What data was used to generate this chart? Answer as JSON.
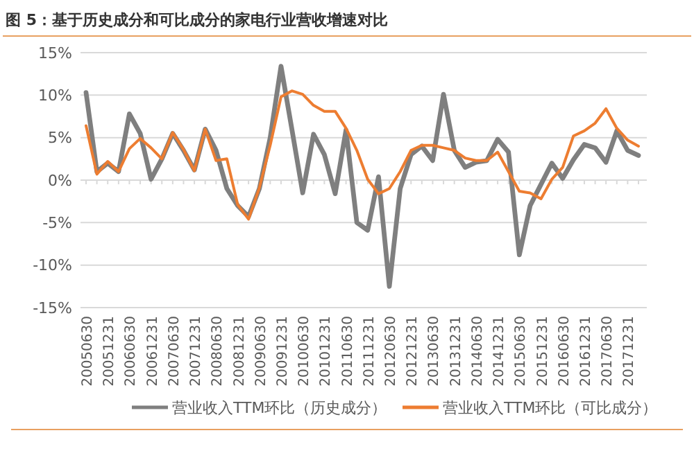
{
  "chart_data": {
    "type": "line",
    "title": "图 5：基于历史成分和可比成分的家电行业营收增速对比",
    "categories": [
      "20050630",
      null,
      "20051231",
      null,
      "20060630",
      null,
      "20061231",
      null,
      "20070630",
      null,
      "20071231",
      null,
      "20080630",
      null,
      "20081231",
      null,
      "20090630",
      null,
      "20091231",
      null,
      "20100630",
      null,
      "20101231",
      null,
      "20110630",
      null,
      "20111231",
      null,
      "20120630",
      null,
      "20121231",
      null,
      "20130630",
      null,
      "20131231",
      null,
      "20140630",
      null,
      "20141231",
      null,
      "20150630",
      null,
      "20151231",
      null,
      "20160630",
      null,
      "20161231",
      null,
      "20170630",
      null,
      "20171231",
      null
    ],
    "series": [
      {
        "name": "营业收入TTM环比（历史成分）",
        "color": "#7f7f7f",
        "values": [
          10.3,
          1,
          2,
          1,
          7.8,
          5.5,
          0.1,
          2.5,
          5.5,
          3.5,
          1.2,
          6,
          3.5,
          -1,
          -3,
          -4.3,
          -1,
          5,
          13.4,
          6,
          -1.5,
          5.4,
          3,
          -1.6,
          5.9,
          -5,
          -5.9,
          0.4,
          -12.5,
          -1,
          3,
          4,
          2.3,
          10.1,
          3.5,
          1.5,
          2.1,
          2.3,
          4.8,
          3.3,
          -8.8,
          -3,
          -0.5,
          2,
          0.2,
          2.4,
          4.2,
          3.8,
          2.1,
          5.8,
          3.5,
          2.9
        ]
      },
      {
        "name": "营业收入TTM环比（可比成分）",
        "color": "#ed7d31",
        "values": [
          6.4,
          0.7,
          2.2,
          1,
          3.7,
          4.9,
          3.8,
          2.5,
          5.6,
          3.6,
          1.1,
          6,
          2.3,
          2.5,
          -2.9,
          -4.6,
          -0.9,
          4.1,
          9.8,
          10.5,
          10.1,
          8.8,
          8.1,
          8.1,
          6.1,
          3.5,
          0.1,
          -1.6,
          -1,
          1,
          3.5,
          4.1,
          4.1,
          3.8,
          3.5,
          2.6,
          2.3,
          2.3,
          3.3,
          1,
          -1.3,
          -1.5,
          -2.2,
          0.1,
          1.5,
          5.2,
          5.8,
          6.7,
          8.4,
          6.1,
          4.7,
          4
        ]
      }
    ],
    "ylim": [
      -15,
      15
    ],
    "yticks": [
      {
        "value": -15,
        "label": "-15%"
      },
      {
        "value": -10,
        "label": "-10%"
      },
      {
        "value": -5,
        "label": "-5%"
      },
      {
        "value": 0,
        "label": "0%"
      },
      {
        "value": 5,
        "label": "5%"
      },
      {
        "value": 10,
        "label": "10%"
      },
      {
        "value": 15,
        "label": "15%"
      }
    ],
    "grid": "y",
    "legend": "bottom",
    "line_style": "solid",
    "marker": "none"
  }
}
